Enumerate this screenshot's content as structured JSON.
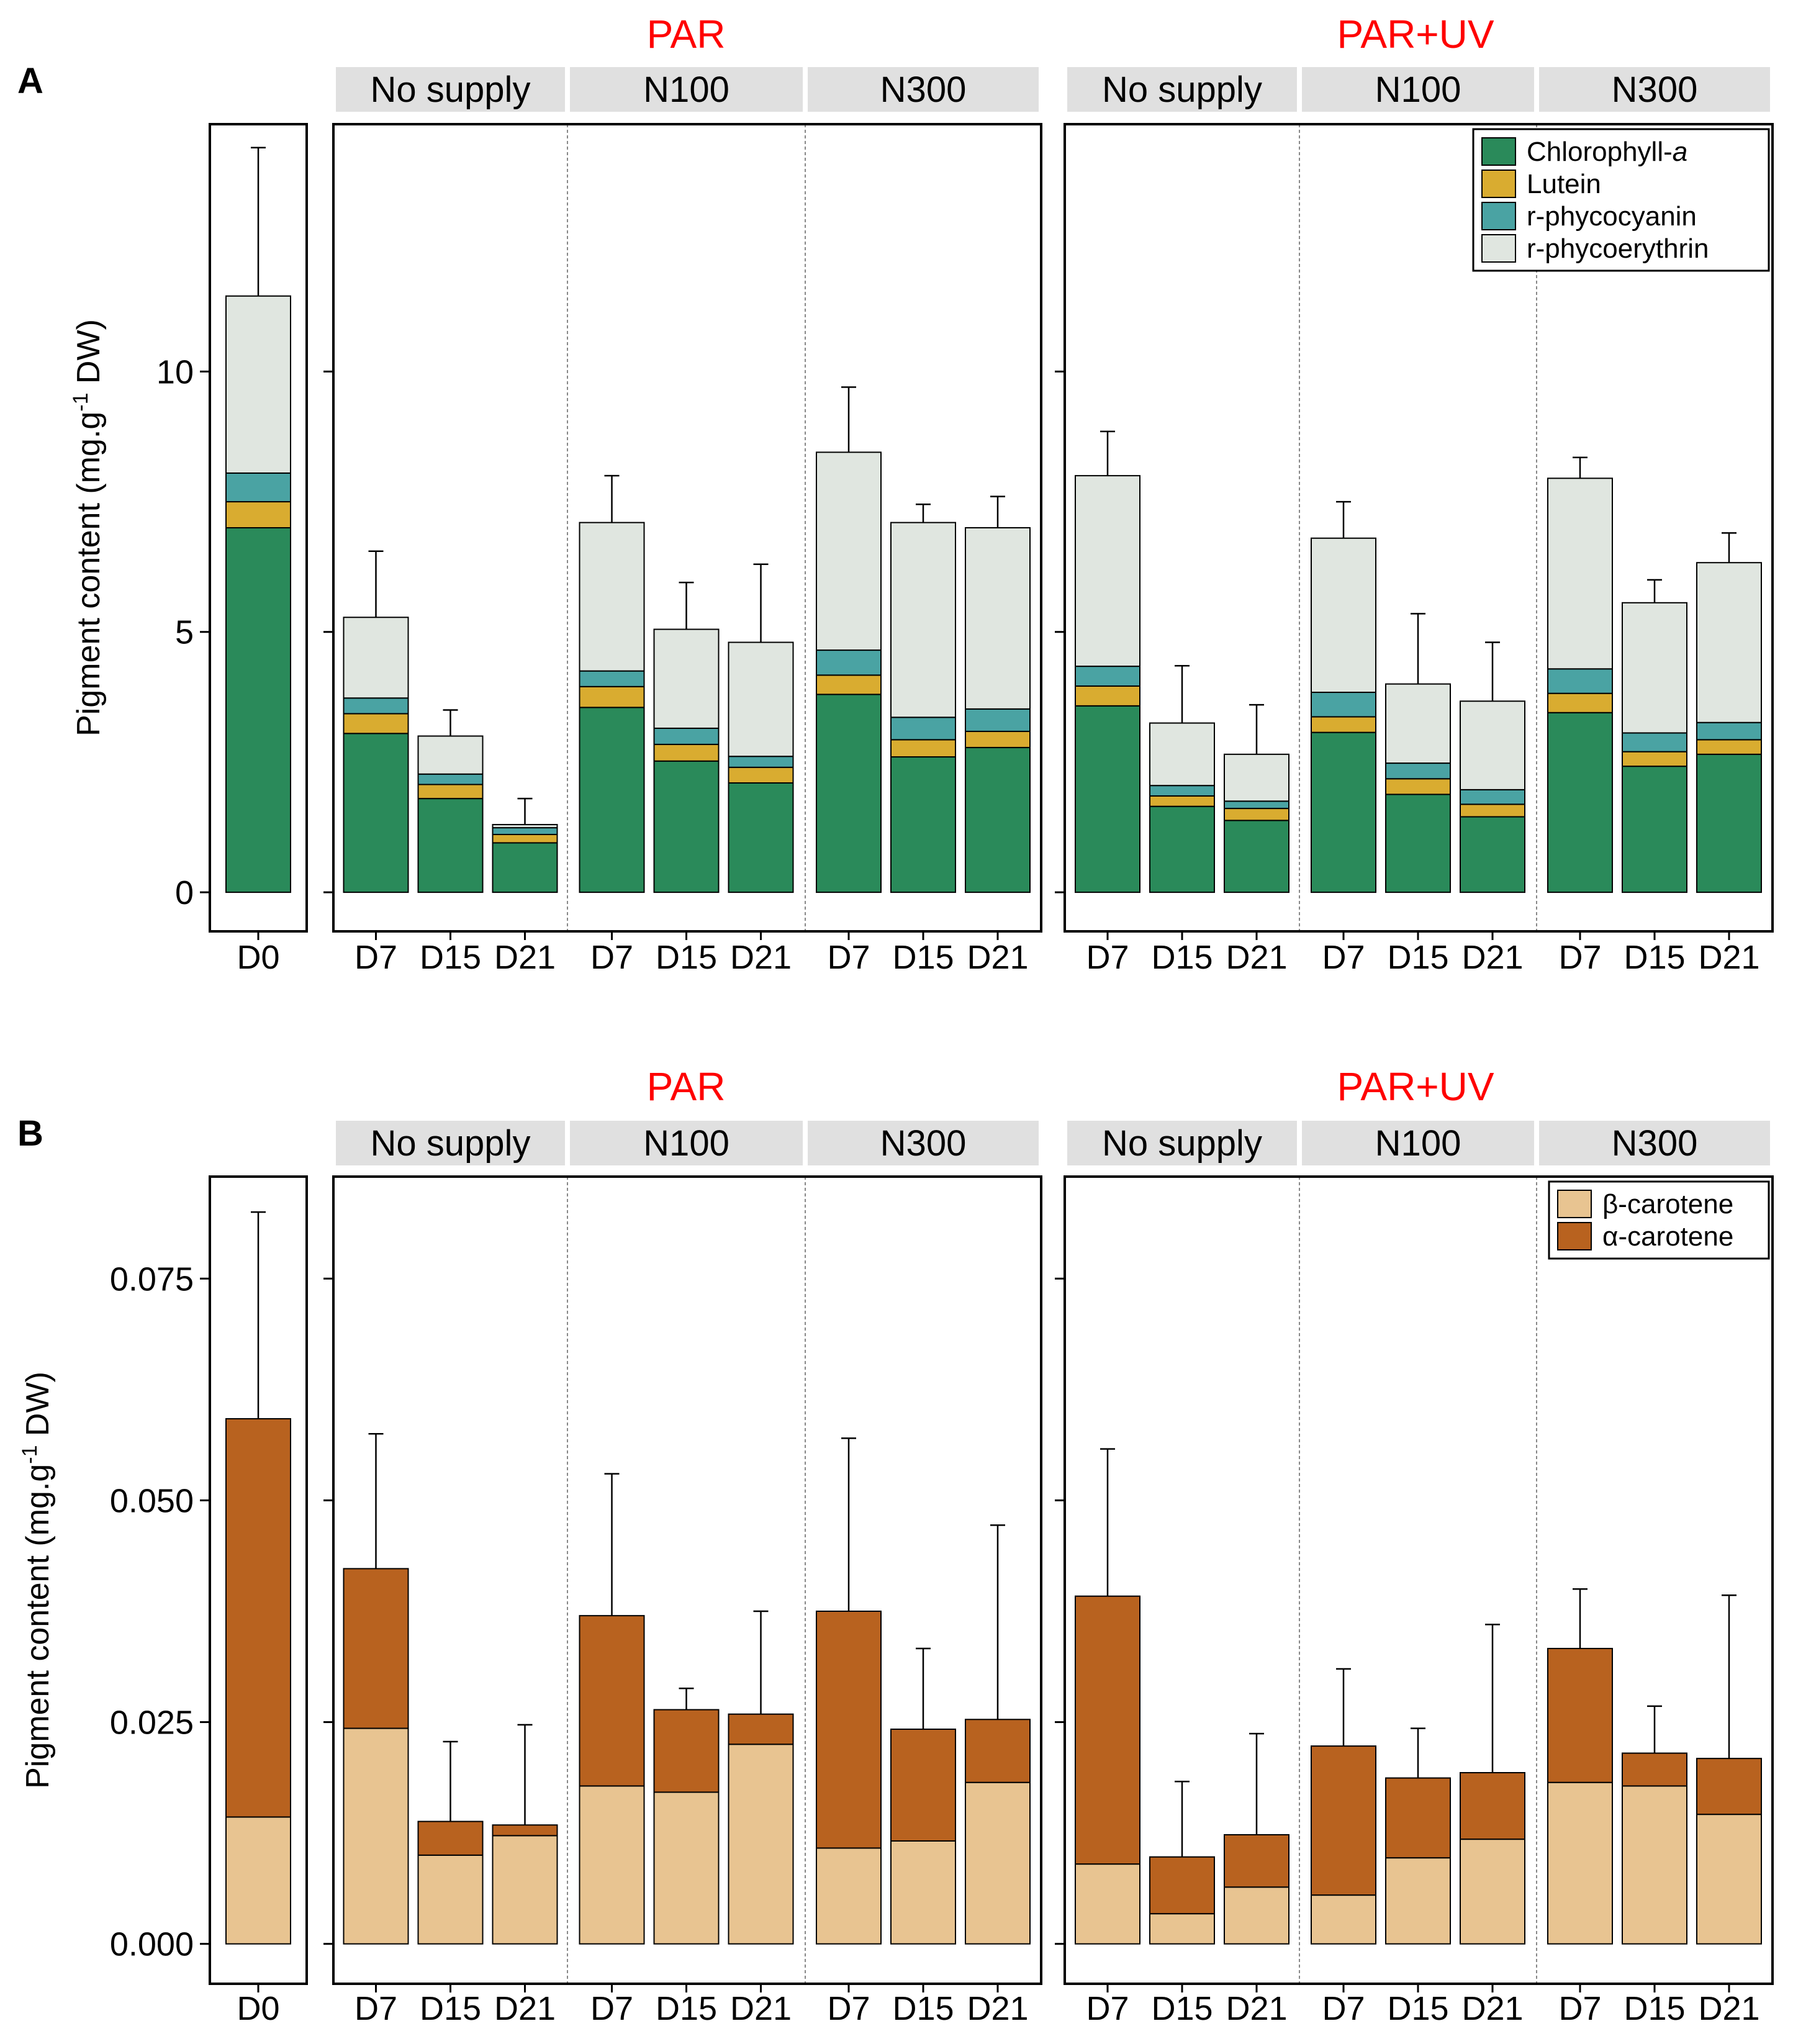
{
  "colors": {
    "condition_title": "#ff0000",
    "strip_bg": "#e0e0e0",
    "chlorophyll": "#2a8a5a",
    "lutein": "#d9ac30",
    "phycocyanin": "#4aa3a3",
    "phycoerythrin": "#e0e6e0",
    "beta": "#e8c491",
    "alpha": "#b8621f"
  },
  "chart_data": [
    {
      "type": "bar",
      "stacked": true,
      "panel_label": "A",
      "ylabel": "Pigment content (mg.g",
      "ylabel_sup": "-1",
      "ylabel_tail": " DW)",
      "yticks": [
        0,
        5,
        10
      ],
      "ytick_labels": [
        "0",
        "5",
        "10"
      ],
      "ylim": [
        -0.75,
        14.75
      ],
      "conditions": [
        "PAR",
        "PAR+UV"
      ],
      "treatments": [
        "No supply",
        "N100",
        "N300"
      ],
      "days": [
        "D7",
        "D15",
        "D21"
      ],
      "baseline_label": "D0",
      "legend": [
        {
          "key": "chlorophyll",
          "label": "Chlorophyll-",
          "label_italic": "a"
        },
        {
          "key": "lutein",
          "label": "Lutein"
        },
        {
          "key": "phycocyanin",
          "label": "r-phycocyanin"
        },
        {
          "key": "phycoerythrin",
          "label": "r-phycoerythrin"
        }
      ],
      "series_keys": [
        "chlorophyll",
        "lutein",
        "phycocyanin",
        "phycoerythrin"
      ],
      "d0": {
        "values": [
          7.0,
          0.5,
          0.55,
          3.4
        ],
        "err_top": 14.3
      },
      "groups": {
        "PAR": {
          "No supply": [
            {
              "values": [
                3.05,
                0.38,
                0.3,
                1.55
              ],
              "err_top": 6.55
            },
            {
              "values": [
                1.8,
                0.27,
                0.2,
                0.73
              ],
              "err_top": 3.5
            },
            {
              "values": [
                0.95,
                0.16,
                0.13,
                0.06
              ],
              "err_top": 1.8
            }
          ],
          "N100": [
            {
              "values": [
                3.55,
                0.4,
                0.3,
                2.85
              ],
              "err_top": 8.0
            },
            {
              "values": [
                2.52,
                0.32,
                0.31,
                1.9
              ],
              "err_top": 5.95
            },
            {
              "values": [
                2.1,
                0.3,
                0.21,
                2.19
              ],
              "err_top": 6.3
            }
          ],
          "N300": [
            {
              "values": [
                3.8,
                0.37,
                0.48,
                3.8
              ],
              "err_top": 9.7
            },
            {
              "values": [
                2.6,
                0.33,
                0.43,
                3.74
              ],
              "err_top": 7.45
            },
            {
              "values": [
                2.78,
                0.31,
                0.43,
                3.48
              ],
              "err_top": 7.6
            }
          ]
        },
        "PAR+UV": {
          "No supply": [
            {
              "values": [
                3.58,
                0.38,
                0.38,
                3.66
              ],
              "err_top": 8.85
            },
            {
              "values": [
                1.65,
                0.2,
                0.2,
                1.2
              ],
              "err_top": 4.35
            },
            {
              "values": [
                1.38,
                0.23,
                0.14,
                0.9
              ],
              "err_top": 3.6
            }
          ],
          "N100": [
            {
              "values": [
                3.07,
                0.3,
                0.47,
                2.96
              ],
              "err_top": 7.5
            },
            {
              "values": [
                1.88,
                0.3,
                0.3,
                1.52
              ],
              "err_top": 5.35
            },
            {
              "values": [
                1.45,
                0.24,
                0.28,
                1.7
              ],
              "err_top": 4.8
            }
          ],
          "N300": [
            {
              "values": [
                3.45,
                0.37,
                0.47,
                3.66
              ],
              "err_top": 8.35
            },
            {
              "values": [
                2.42,
                0.28,
                0.36,
                2.5
              ],
              "err_top": 6.0
            },
            {
              "values": [
                2.65,
                0.28,
                0.33,
                3.07
              ],
              "err_top": 6.9
            }
          ]
        }
      }
    },
    {
      "type": "bar",
      "stacked": true,
      "panel_label": "B",
      "ylabel": "Pigment content (mg.g",
      "ylabel_sup": "-1",
      "ylabel_tail": " DW)",
      "yticks": [
        0.0,
        0.025,
        0.05,
        0.075
      ],
      "ytick_labels": [
        "0.000",
        "0.025",
        "0.050",
        "0.075"
      ],
      "ylim": [
        -0.0045,
        0.0865
      ],
      "conditions": [
        "PAR",
        "PAR+UV"
      ],
      "treatments": [
        "No supply",
        "N100",
        "N300"
      ],
      "days": [
        "D7",
        "D15",
        "D21"
      ],
      "baseline_label": "D0",
      "legend": [
        {
          "key": "beta",
          "label": "β-carotene"
        },
        {
          "key": "alpha",
          "label": "α-carotene"
        }
      ],
      "series_keys": [
        "beta",
        "alpha"
      ],
      "d0": {
        "values": [
          0.0143,
          0.0449
        ],
        "err_top": 0.0825
      },
      "groups": {
        "PAR": {
          "No supply": [
            {
              "values": [
                0.0243,
                0.018
              ],
              "err_top": 0.0575
            },
            {
              "values": [
                0.01,
                0.0038
              ],
              "err_top": 0.0228
            },
            {
              "values": [
                0.0122,
                0.0012
              ],
              "err_top": 0.0247
            }
          ],
          "N100": [
            {
              "values": [
                0.0178,
                0.0192
              ],
              "err_top": 0.053
            },
            {
              "values": [
                0.0171,
                0.0093
              ],
              "err_top": 0.0288
            },
            {
              "values": [
                0.0225,
                0.0034
              ],
              "err_top": 0.0375
            }
          ],
          "N300": [
            {
              "values": [
                0.0108,
                0.0267
              ],
              "err_top": 0.057
            },
            {
              "values": [
                0.0116,
                0.0126
              ],
              "err_top": 0.0333
            },
            {
              "values": [
                0.0182,
                0.0071
              ],
              "err_top": 0.0472
            }
          ]
        },
        "PAR+UV": {
          "No supply": [
            {
              "values": [
                0.009,
                0.0302
              ],
              "err_top": 0.0558
            },
            {
              "values": [
                0.0034,
                0.0064
              ],
              "err_top": 0.0183
            },
            {
              "values": [
                0.0064,
                0.0059
              ],
              "err_top": 0.0237
            }
          ],
          "N100": [
            {
              "values": [
                0.0055,
                0.0168
              ],
              "err_top": 0.031
            },
            {
              "values": [
                0.0097,
                0.009
              ],
              "err_top": 0.0243
            },
            {
              "values": [
                0.0118,
                0.0075
              ],
              "err_top": 0.036
            }
          ],
          "N300": [
            {
              "values": [
                0.0182,
                0.0151
              ],
              "err_top": 0.04
            },
            {
              "values": [
                0.0178,
                0.0037
              ],
              "err_top": 0.0268
            },
            {
              "values": [
                0.0146,
                0.0063
              ],
              "err_top": 0.0393
            }
          ]
        }
      }
    }
  ]
}
